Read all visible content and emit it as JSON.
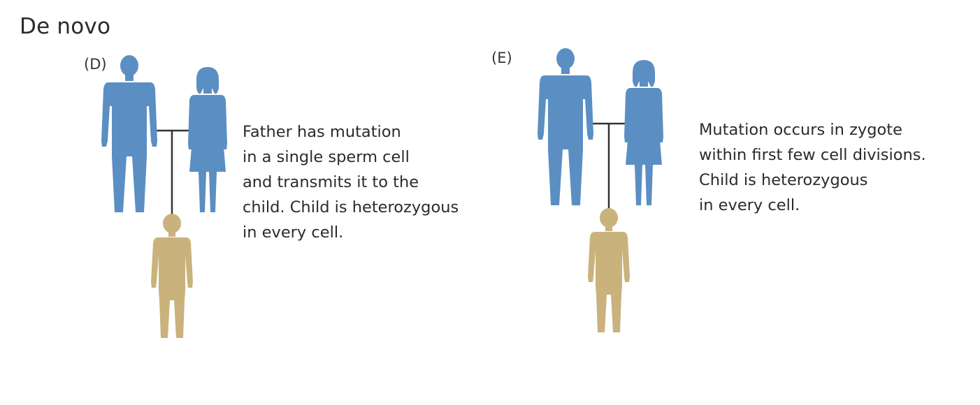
{
  "heading": "De novo",
  "panels": [
    {
      "label": "(D)",
      "description": [
        "Father has mutation",
        "in a single sperm cell",
        "and transmits it to the",
        "child. Child is heterozygous",
        "in every cell."
      ]
    },
    {
      "label": "(E)",
      "description": [
        "Mutation occurs in zygote",
        "within first few cell divisions.",
        "Child is heterozygous",
        "in every cell."
      ]
    }
  ],
  "colors": {
    "parent": "#5b8fc3",
    "child": "#c9b27c",
    "line": "#333333"
  },
  "icons": [
    "man-icon",
    "woman-icon",
    "child-icon"
  ]
}
